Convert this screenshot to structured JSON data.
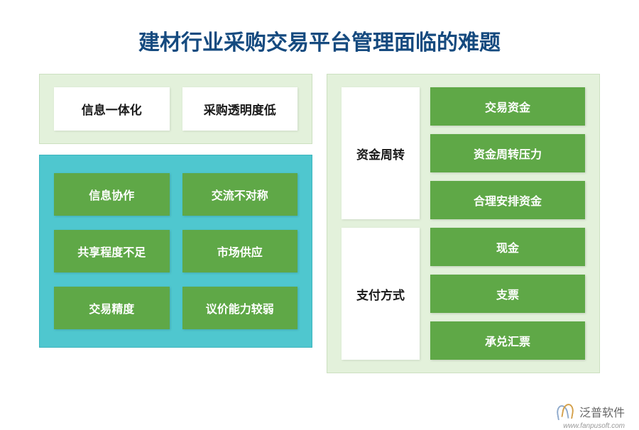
{
  "title": "建材行业采购交易平台管理面临的难题",
  "colors": {
    "title": "#154a7f",
    "panel_light": "#e3f1db",
    "panel_teal": "#4fc7cf",
    "box_green": "#5fa847",
    "box_white": "#ffffff",
    "text_dark": "#1a1a1a",
    "text_white": "#ffffff"
  },
  "left": {
    "top_boxes": [
      "信息一体化",
      "采购透明度低"
    ],
    "teal_grid": [
      [
        "信息协作",
        "交流不对称"
      ],
      [
        "共享程度不足",
        "市场供应"
      ],
      [
        "交易精度",
        "议价能力较弱"
      ]
    ]
  },
  "right": {
    "sections": [
      {
        "label": "资金周转",
        "items": [
          "交易资金",
          "资金周转压力",
          "合理安排资金"
        ]
      },
      {
        "label": "支付方式",
        "items": [
          "现金",
          "支票",
          "承兑汇票"
        ]
      }
    ]
  },
  "footer": {
    "brand": "泛普软件",
    "url": "www.fanpusoft.com"
  }
}
